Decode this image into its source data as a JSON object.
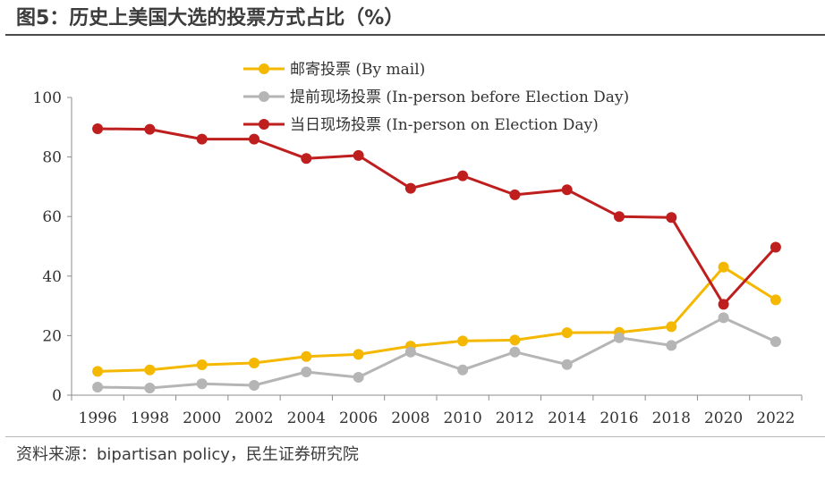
{
  "figure": {
    "title": "图5：历史上美国大选的投票方式占比（%）",
    "source": "资料来源：bipartisan policy，民生证券研究院"
  },
  "chart_data": {
    "type": "line",
    "x": [
      "1996",
      "1998",
      "2000",
      "2002",
      "2004",
      "2006",
      "2008",
      "2010",
      "2012",
      "2014",
      "2016",
      "2018",
      "2020",
      "2022"
    ],
    "ylim": [
      0,
      100
    ],
    "yticks": [
      0,
      20,
      40,
      60,
      80,
      100
    ],
    "grid": false,
    "legend_position": "top",
    "series": [
      {
        "name": "邮寄投票 (By mail)",
        "color": "#F5B800",
        "values": [
          8,
          8.5,
          10.2,
          10.8,
          13,
          13.7,
          16.5,
          18.2,
          18.5,
          21,
          21.1,
          23,
          43,
          32
        ]
      },
      {
        "name": "提前现场投票 (In-person before Election Day)",
        "color": "#B5B5B5",
        "values": [
          2.7,
          2.4,
          3.8,
          3.3,
          7.8,
          6,
          14.5,
          8.5,
          14.5,
          10.3,
          19.3,
          16.7,
          26,
          18
        ]
      },
      {
        "name": "当日现场投票 (In-person on Election Day)",
        "color": "#BF1E1E",
        "values": [
          89.5,
          89.3,
          86,
          86,
          79.5,
          80.5,
          69.5,
          73.7,
          67.3,
          69,
          60,
          59.7,
          30.5,
          49.7
        ]
      }
    ]
  }
}
